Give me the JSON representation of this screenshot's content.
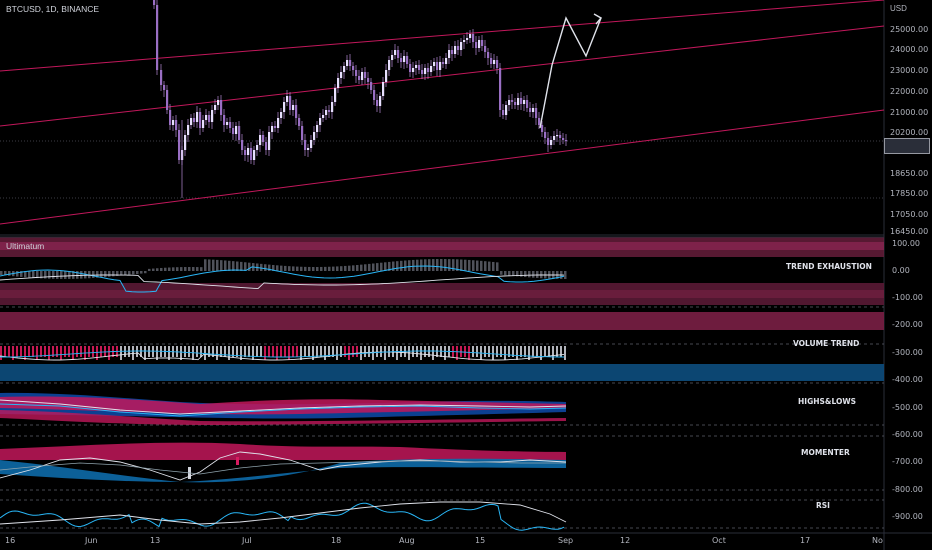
{
  "header": {
    "symbol": "BTCUSD, 1D, BINANCE",
    "currency": "USD"
  },
  "indicator": {
    "name": "Ultimatum"
  },
  "price_axis": [
    "25000.00",
    "24000.00",
    "23000.00",
    "22000.00",
    "21000.00",
    "20200.00",
    "18650.00",
    "17850.00",
    "17050.00",
    "16450.00"
  ],
  "price_tag": "",
  "indicator_axis": [
    "100.00",
    "0.00",
    "-100.00",
    "-200.00",
    "-300.00",
    "-400.00",
    "-500.00",
    "-600.00",
    "-700.00",
    "-800.00",
    "-900.00"
  ],
  "time_axis": [
    "16",
    "Jun",
    "13",
    "Jul",
    "18",
    "Aug",
    "15",
    "Sep",
    "12",
    "Oct",
    "17",
    "No"
  ],
  "sections": [
    "TREND EXHAUSTION",
    "VOLUME TREND",
    "HIGHS&LOWS",
    "MOMENTER",
    "RSI"
  ],
  "colors": {
    "background": "#000000",
    "up": "#d8c8ff",
    "down": "#b58bd6",
    "channel": "#c2185b",
    "projection": "#e0e3eb",
    "signal": "#29b6f6",
    "magenta": "#d81b60"
  }
}
